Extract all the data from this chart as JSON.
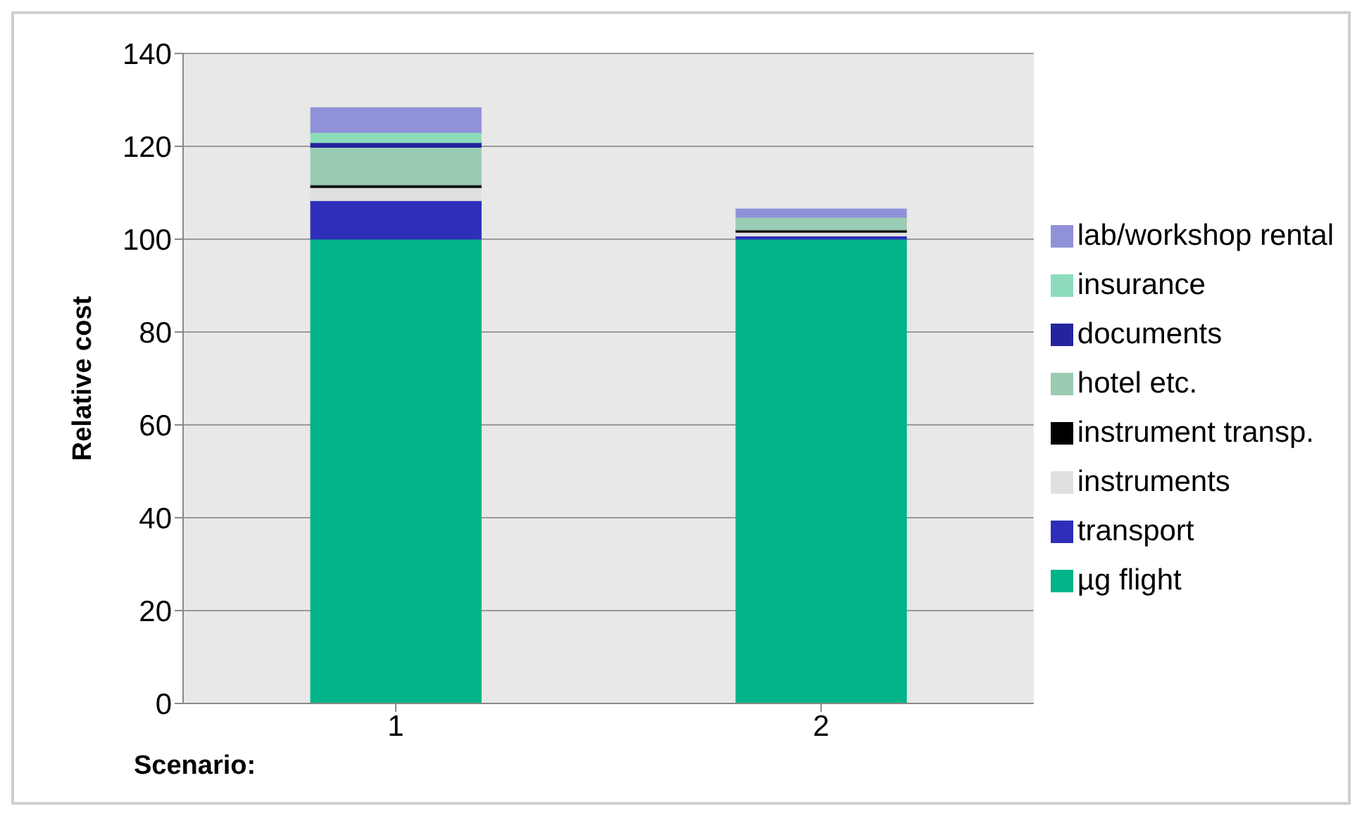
{
  "chart_data": {
    "type": "bar",
    "stacked": true,
    "xlabel": "Scenario:",
    "ylabel": "Relative  cost",
    "categories": [
      "1",
      "2"
    ],
    "series": [
      {
        "name": "µg flight",
        "color": "#00b389",
        "values": [
          100,
          100
        ]
      },
      {
        "name": "transport",
        "color": "#2e2eb8",
        "values": [
          8.3,
          0.7
        ]
      },
      {
        "name": "instruments",
        "color": "#e0e0e0",
        "values": [
          2.8,
          0.8
        ]
      },
      {
        "name": "instrument transp.",
        "color": "#000000",
        "values": [
          0.6,
          0.5
        ]
      },
      {
        "name": "hotel etc.",
        "color": "#99ccb3",
        "values": [
          8.1,
          2.7
        ]
      },
      {
        "name": "documents",
        "color": "#24249e",
        "values": [
          1.0,
          0
        ]
      },
      {
        "name": "insurance",
        "color": "#8cdcbc",
        "values": [
          2.2,
          0
        ]
      },
      {
        "name": "lab/workshop rental",
        "color": "#9191d9",
        "values": [
          5.3,
          1.8
        ]
      }
    ],
    "ylim": [
      0,
      140
    ],
    "yticks": [
      0,
      20,
      40,
      60,
      80,
      100,
      120,
      140
    ],
    "grid": "y",
    "legend": "right"
  }
}
